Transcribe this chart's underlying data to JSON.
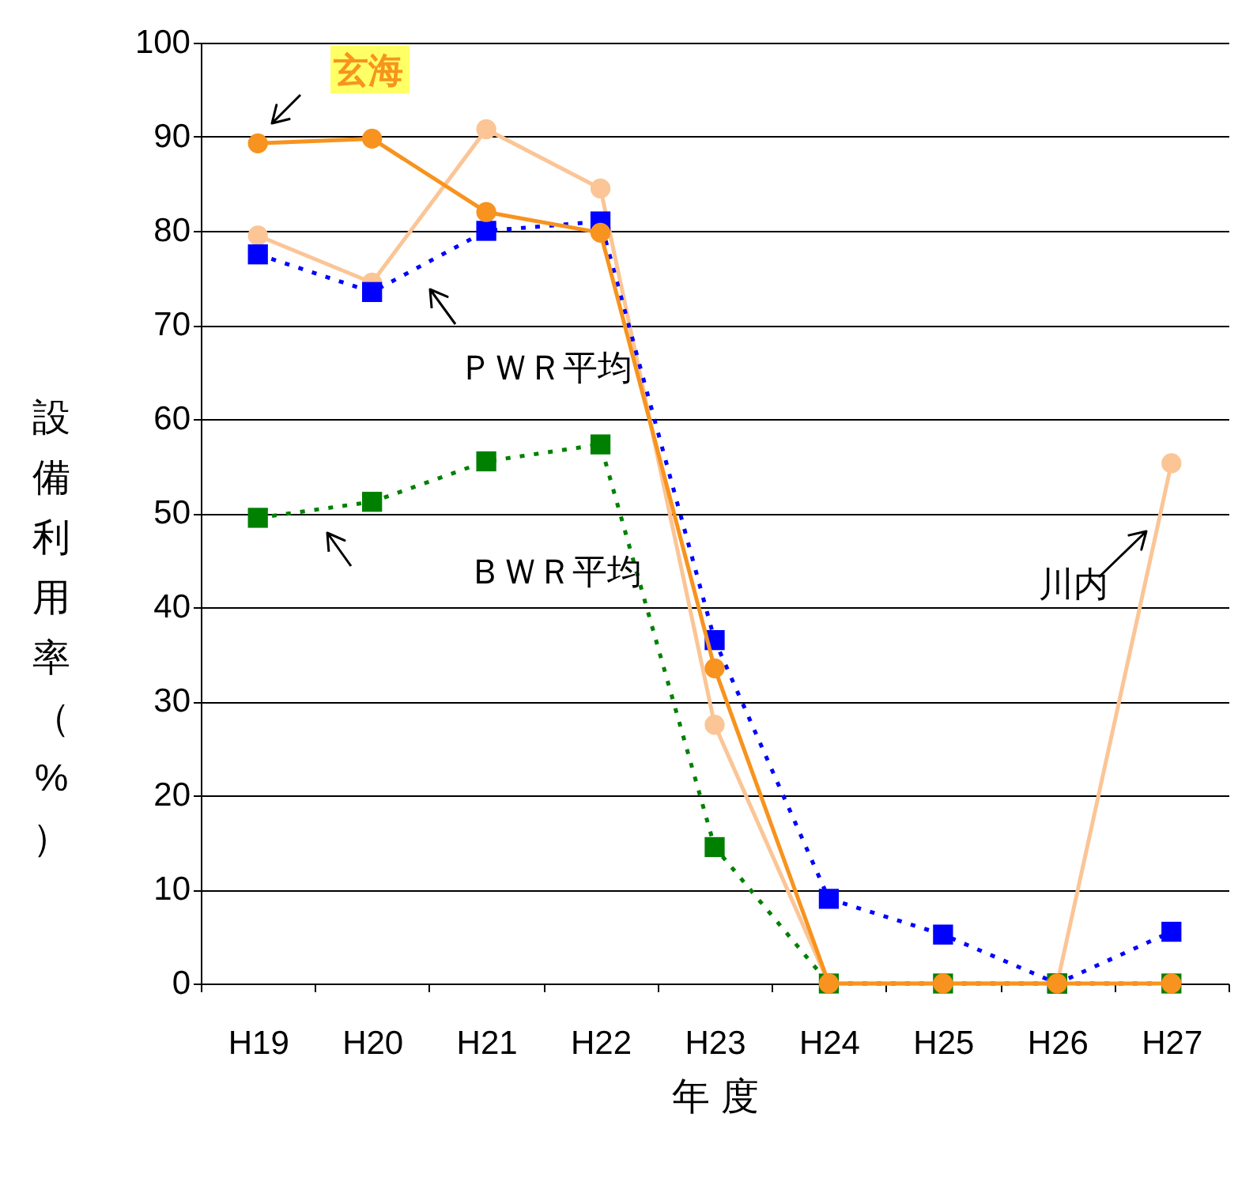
{
  "chart_data": {
    "type": "line",
    "xlabel": "年 度",
    "ylabel": "設備利用率（%）",
    "categories": [
      "H19",
      "H20",
      "H21",
      "H22",
      "H23",
      "H24",
      "H25",
      "H26",
      "H27"
    ],
    "series": [
      {
        "name": "川内",
        "color": "#fbc596",
        "marker": "circle",
        "line_style": "solid",
        "values": [
          79.5,
          74.5,
          90.8,
          84.5,
          27.5,
          0,
          0,
          0,
          55.3
        ]
      },
      {
        "name": "ＰＷＲ平均",
        "color": "#0000ff",
        "marker": "square",
        "line_style": "dotted",
        "values": [
          77.5,
          73.5,
          80,
          81,
          36.5,
          9,
          5.2,
          0,
          5.5
        ]
      },
      {
        "name": "ＢＷＲ平均",
        "color": "#008000",
        "marker": "square",
        "line_style": "dotted",
        "values": [
          49.5,
          51.2,
          55.5,
          57.3,
          14.5,
          0,
          0,
          0,
          0
        ]
      },
      {
        "name": "玄海",
        "color": "#f7931e",
        "marker": "circle",
        "line_style": "solid",
        "values": [
          89.3,
          89.8,
          82,
          79.8,
          33.5,
          0,
          0,
          0,
          0
        ]
      }
    ],
    "ylim": [
      0,
      100
    ],
    "yticks": [
      0,
      10,
      20,
      30,
      40,
      50,
      60,
      70,
      80,
      90,
      100
    ],
    "grid": "y"
  }
}
